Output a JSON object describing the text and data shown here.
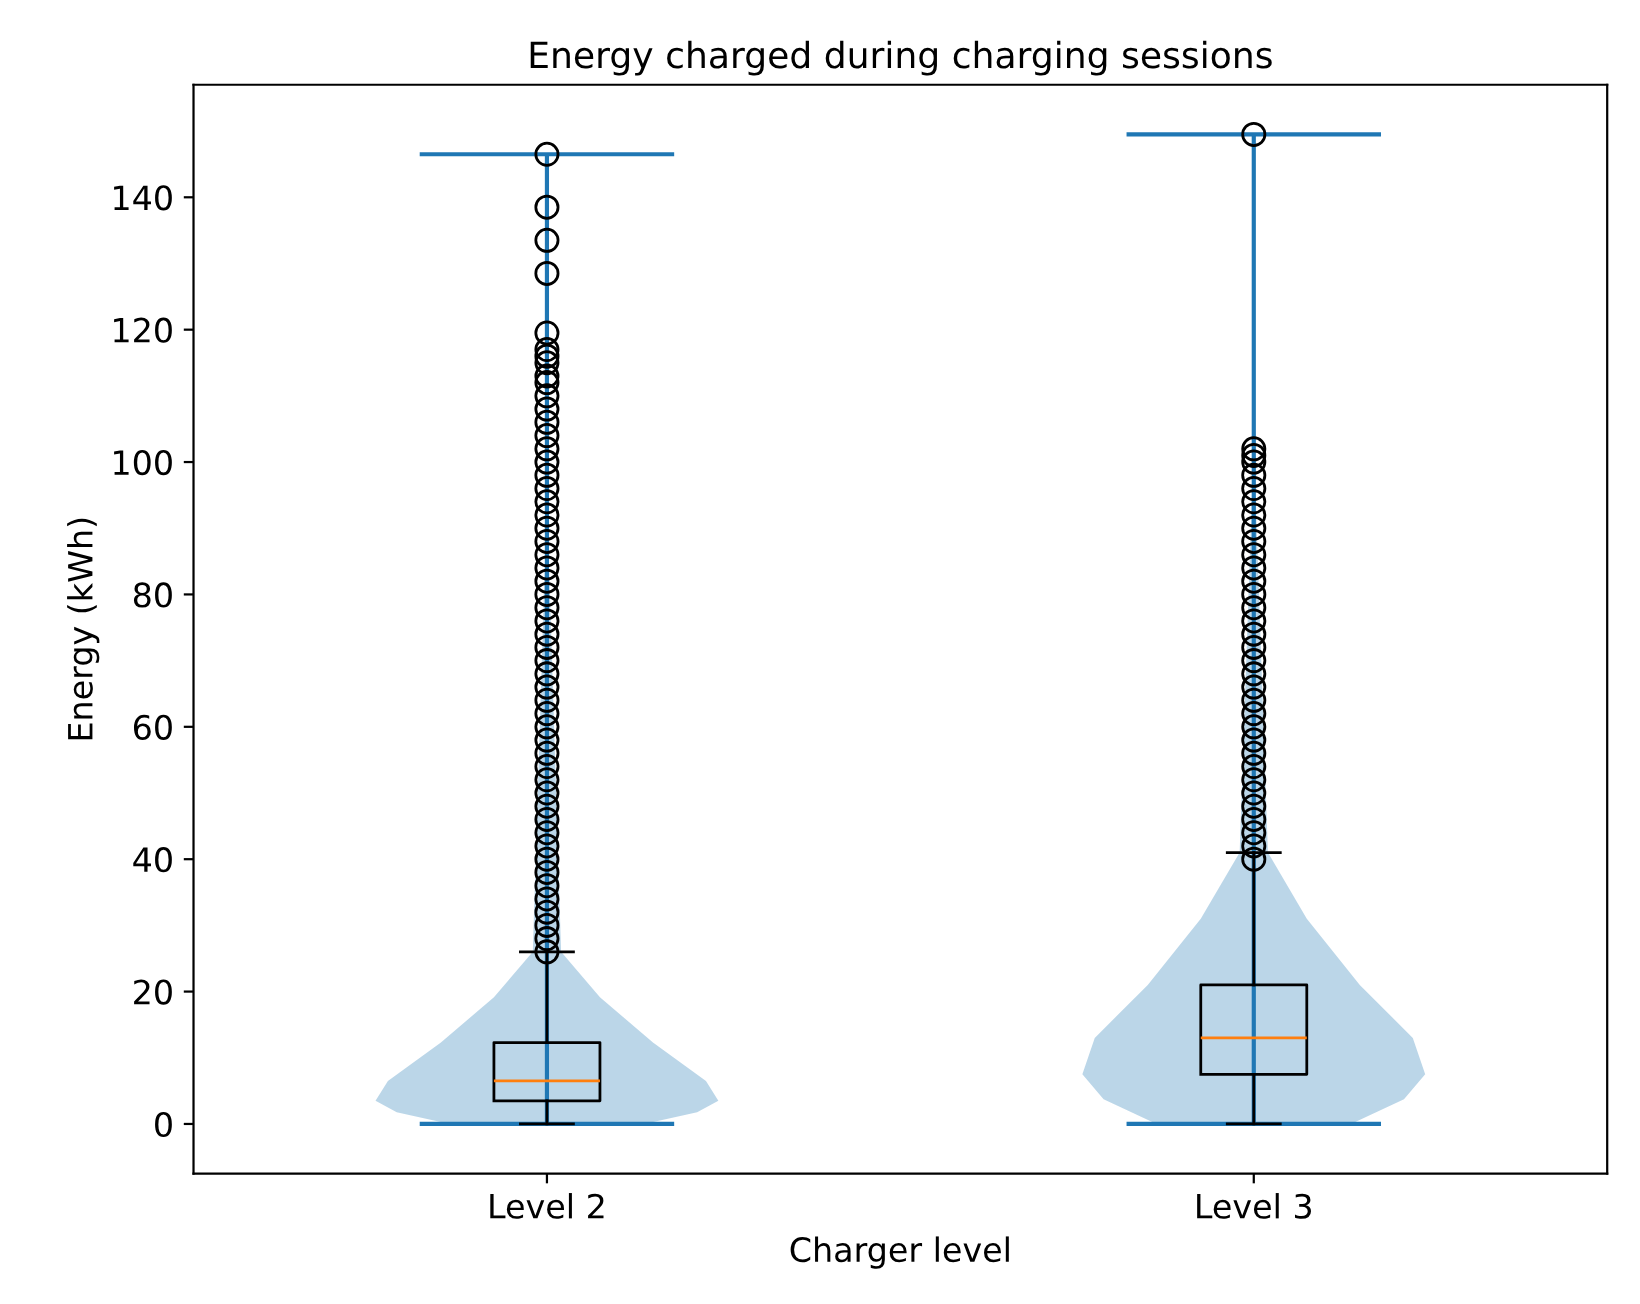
{
  "chart_data": {
    "type": "box",
    "title": "Energy charged during charging sessions",
    "xlabel": "Charger level",
    "ylabel": "Energy (kWh)",
    "categories": [
      "Level 2",
      "Level 3"
    ],
    "ylim": [
      -7.5,
      157
    ],
    "yticks": [
      0,
      20,
      40,
      60,
      80,
      100,
      120,
      140
    ],
    "legend": false,
    "boxes": [
      {
        "low": 0,
        "q1": 3.5,
        "median": 6.5,
        "q3": 12.3,
        "high": 26,
        "outliers": [
          26,
          28,
          30,
          32,
          34,
          36,
          38,
          40,
          42,
          44,
          46,
          48,
          50,
          52,
          54,
          56,
          58,
          60,
          62,
          64,
          66,
          68,
          70,
          72,
          74,
          76,
          78,
          80,
          82,
          84,
          86,
          88,
          90,
          92,
          94,
          96,
          98,
          100,
          102,
          104,
          106,
          108,
          110,
          112,
          113,
          115,
          116,
          117,
          119.5,
          128.5,
          133.5,
          138.5,
          146.5
        ]
      },
      {
        "low": 0,
        "q1": 7.5,
        "median": 13,
        "q3": 21,
        "high": 41,
        "outliers": [
          40,
          42,
          44,
          46,
          48,
          50,
          52,
          54,
          56,
          58,
          60,
          62,
          64,
          66,
          68,
          70,
          72,
          74,
          76,
          78,
          80,
          82,
          84,
          86,
          88,
          90,
          92,
          94,
          96,
          98,
          100,
          101,
          102,
          149.5
        ]
      }
    ]
  }
}
